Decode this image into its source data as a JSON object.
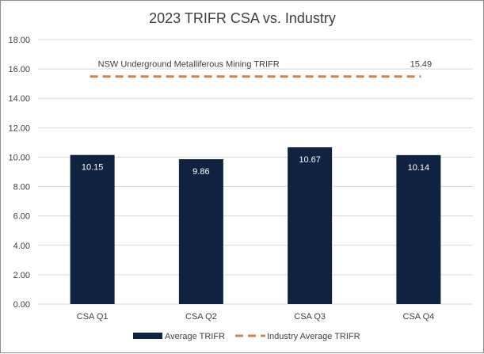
{
  "chart_data": {
    "type": "bar",
    "title": "2023 TRIFR CSA vs. Industry",
    "categories": [
      "CSA Q1",
      "CSA Q2",
      "CSA Q3",
      "CSA Q4"
    ],
    "series": [
      {
        "name": "Average TRIFR",
        "type": "bar",
        "color": "#0f2341",
        "values": [
          10.15,
          9.86,
          10.67,
          10.14
        ],
        "data_labels": [
          "10.15",
          "9.86",
          "10.67",
          "10.14"
        ]
      },
      {
        "name": "Industry Average TRIFR",
        "type": "line",
        "style": "dashed",
        "color": "#c8865a",
        "value": 15.49,
        "data_label": "15.49",
        "annotation": "NSW Underground Metalliferous Mining TRIFR"
      }
    ],
    "y_ticks": [
      "0.00",
      "2.00",
      "4.00",
      "6.00",
      "8.00",
      "10.00",
      "12.00",
      "14.00",
      "16.00",
      "18.00"
    ],
    "ylim": [
      0,
      18
    ],
    "xlabel": "",
    "ylabel": "",
    "grid": true,
    "legend_position": "bottom"
  }
}
